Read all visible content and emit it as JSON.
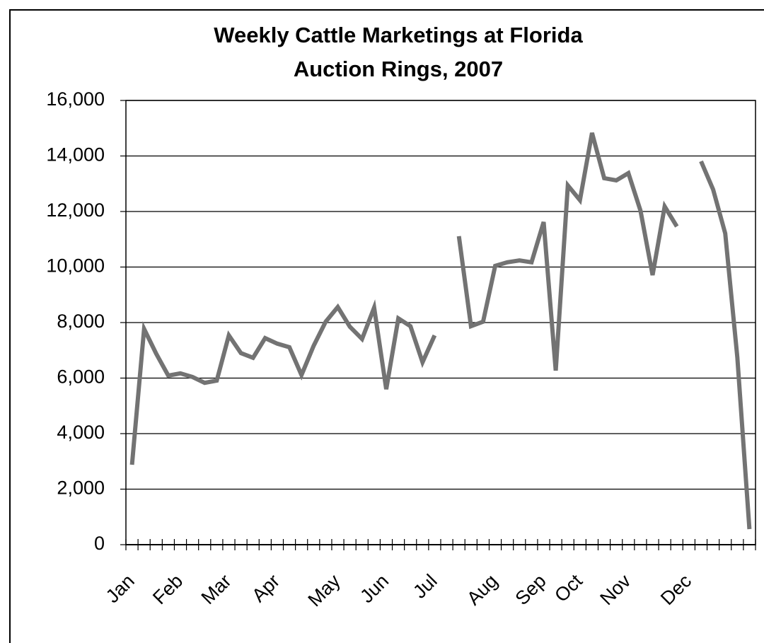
{
  "chart_data": {
    "type": "line",
    "title": "Weekly Cattle Marketings at Florida Auction Rings, 2007",
    "categories": [
      "Jan",
      null,
      null,
      null,
      "Feb",
      null,
      null,
      null,
      "Mar",
      null,
      null,
      null,
      "Apr",
      null,
      null,
      null,
      null,
      "May",
      null,
      null,
      null,
      "Jun",
      null,
      null,
      null,
      "Jul",
      null,
      null,
      null,
      null,
      "Aug",
      null,
      null,
      null,
      "Sep",
      null,
      null,
      "Oct",
      null,
      null,
      null,
      "Nov",
      null,
      null,
      null,
      null,
      "Dec",
      null,
      null,
      null,
      null,
      null
    ],
    "series": [
      {
        "color": "#737373",
        "values": [
          2880,
          7770,
          6880,
          6090,
          6170,
          6040,
          5830,
          5910,
          7540,
          6900,
          6730,
          7440,
          7240,
          7110,
          6110,
          7160,
          8030,
          8560,
          7850,
          7410,
          8540,
          5600,
          8150,
          7870,
          6570,
          7540,
          null,
          11110,
          7870,
          8030,
          10040,
          10170,
          10240,
          10170,
          11620,
          6270,
          12940,
          12410,
          14830,
          13200,
          13120,
          13380,
          12030,
          9710,
          12180,
          11460,
          null,
          13810,
          12790,
          11210,
          6750,
          560
        ]
      }
    ],
    "ylim": [
      0,
      16000
    ],
    "yticks": [
      0,
      {
        "value": 2000,
        "label": "2,000"
      },
      {
        "value": 4000,
        "label": "4,000"
      },
      {
        "value": 6000,
        "label": "6,000"
      },
      {
        "value": 8000,
        "label": "8,000"
      },
      {
        "value": 10000,
        "label": "10,000"
      },
      {
        "value": 12000,
        "label": "12,000"
      },
      {
        "value": 14000,
        "label": "14,000"
      },
      {
        "value": 16000,
        "label": "16,000"
      }
    ],
    "grid": true
  }
}
